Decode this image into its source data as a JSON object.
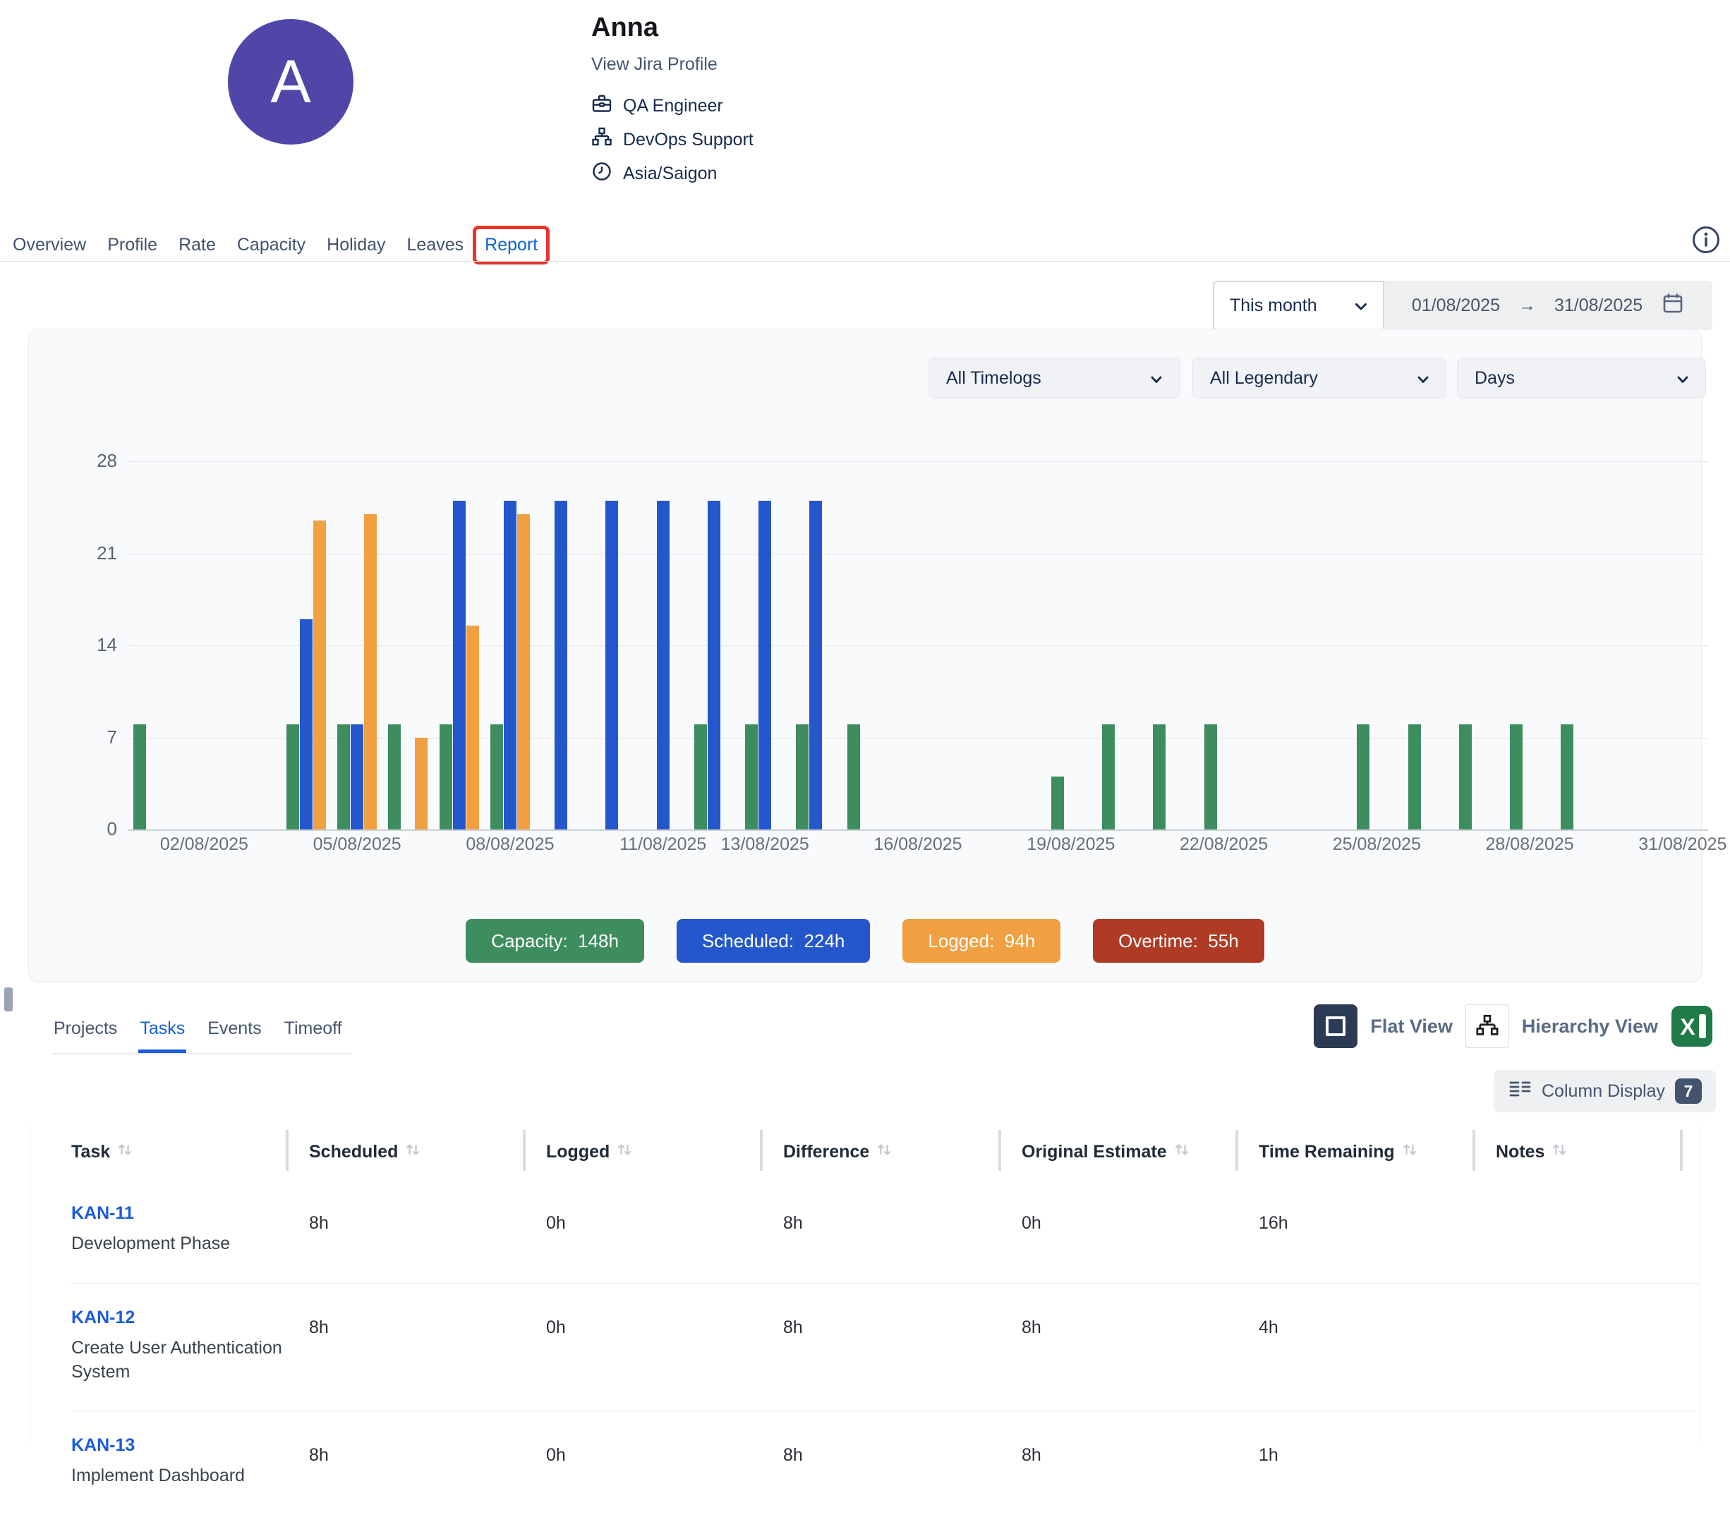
{
  "profile": {
    "avatar_letter": "A",
    "name": "Anna",
    "profile_link": "View Jira Profile",
    "details": [
      {
        "icon": "briefcase-icon",
        "label": "QA Engineer"
      },
      {
        "icon": "org-chart-icon",
        "label": "DevOps Support"
      },
      {
        "icon": "clock-icon",
        "label": "Asia/Saigon"
      }
    ]
  },
  "nav": {
    "tabs": [
      {
        "label": "Overview",
        "active": false,
        "highlighted": false
      },
      {
        "label": "Profile",
        "active": false,
        "highlighted": false
      },
      {
        "label": "Rate",
        "active": false,
        "highlighted": false
      },
      {
        "label": "Capacity",
        "active": false,
        "highlighted": false
      },
      {
        "label": "Holiday",
        "active": false,
        "highlighted": false
      },
      {
        "label": "Leaves",
        "active": false,
        "highlighted": false
      },
      {
        "label": "Report",
        "active": true,
        "highlighted": true
      }
    ]
  },
  "period_controls": {
    "preset": "This month",
    "from": "01/08/2025",
    "arrow": "→",
    "to": "31/08/2025"
  },
  "chart_controls": {
    "timelog_filter": "All Timelogs",
    "legend_filter": "All Legendary",
    "granularity": "Days"
  },
  "chart_data": {
    "type": "bar",
    "unit": "hours",
    "x_axis": {
      "start": "01/08/2025",
      "end": "31/08/2025",
      "days": 31,
      "tick_days": [
        2,
        5,
        8,
        11,
        13,
        16,
        19,
        22,
        25,
        28,
        31
      ],
      "tick_labels": [
        "02/08/2025",
        "05/08/2025",
        "08/08/2025",
        "11/08/2025",
        "13/08/2025",
        "16/08/2025",
        "19/08/2025",
        "22/08/2025",
        "25/08/2025",
        "28/08/2025",
        "31/08/2025"
      ]
    },
    "y_axis": {
      "min": 0,
      "max": 28,
      "ticks": [
        0,
        7,
        14,
        21,
        28
      ]
    },
    "grid": true,
    "legend_position": "bottom",
    "series": [
      {
        "name": "Capacity",
        "color": "#3e8d5f",
        "points": {
          "1": 8,
          "4": 8,
          "5": 8,
          "6": 8,
          "7": 8,
          "8": 8,
          "12": 8,
          "13": 8,
          "14": 8,
          "15": 8,
          "19": 4,
          "20": 8,
          "21": 8,
          "22": 8,
          "25": 8,
          "26": 8,
          "27": 8,
          "28": 8,
          "29": 8
        }
      },
      {
        "name": "Scheduled",
        "color": "#2457cc",
        "points": {
          "4": 16,
          "5": 8,
          "7": 25,
          "8": 25,
          "9": 25,
          "10": 25,
          "11": 25,
          "12": 25,
          "13": 25,
          "14": 25
        }
      },
      {
        "name": "Logged",
        "color": "#f0a041",
        "points": {
          "4": 23.5,
          "5": 24,
          "6": 7,
          "7": 15.5,
          "8": 24
        }
      }
    ]
  },
  "legend": [
    {
      "label": "Capacity",
      "value": "148h",
      "color": "#3e8d5f"
    },
    {
      "label": "Scheduled",
      "value": "224h",
      "color": "#2457cc"
    },
    {
      "label": "Logged",
      "value": "94h",
      "color": "#f0a041"
    },
    {
      "label": "Overtime",
      "value": "55h",
      "color": "#b03b24"
    }
  ],
  "detail_tabs": [
    {
      "label": "Projects",
      "active": false
    },
    {
      "label": "Tasks",
      "active": true
    },
    {
      "label": "Events",
      "active": false
    },
    {
      "label": "Timeoff",
      "active": false
    }
  ],
  "view_controls": {
    "flat_label": "Flat View",
    "hierarchy_label": "Hierarchy View",
    "export_icon": "excel-export-icon"
  },
  "column_display": {
    "label": "Column Display",
    "count": "7"
  },
  "task_table": {
    "columns": [
      "Task",
      "Scheduled",
      "Logged",
      "Difference",
      "Original Estimate",
      "Time Remaining",
      "Notes"
    ],
    "rows": [
      {
        "key": "KAN-11",
        "summary": "Development Phase",
        "cells": [
          "8h",
          "0h",
          "8h",
          "0h",
          "16h",
          ""
        ]
      },
      {
        "key": "KAN-12",
        "summary": "Create User Authentication System",
        "cells": [
          "8h",
          "0h",
          "8h",
          "8h",
          "4h",
          ""
        ]
      },
      {
        "key": "KAN-13",
        "summary": "Implement Dashboard",
        "cells": [
          "8h",
          "0h",
          "8h",
          "8h",
          "1h",
          ""
        ]
      }
    ]
  }
}
